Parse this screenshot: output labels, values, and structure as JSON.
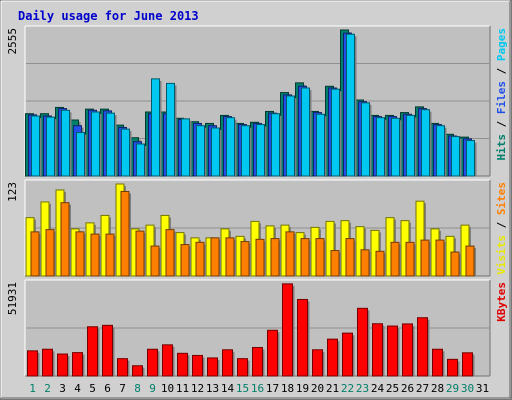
{
  "chart_data": {
    "type": "bar",
    "title": "Daily usage for June 2013",
    "categories": [
      "1",
      "2",
      "3",
      "4",
      "5",
      "6",
      "7",
      "8",
      "9",
      "10",
      "11",
      "12",
      "13",
      "14",
      "15",
      "16",
      "17",
      "18",
      "19",
      "20",
      "21",
      "22",
      "23",
      "24",
      "25",
      "26",
      "27",
      "28",
      "29",
      "30",
      "31"
    ],
    "weekend_days": [
      "1",
      "2",
      "8",
      "9",
      "15",
      "16",
      "22",
      "23",
      "29",
      "30"
    ],
    "panels": [
      {
        "id": "top",
        "ytick": "2555",
        "ymax": 2555,
        "labels": [
          {
            "text": "Pages",
            "color": "#00c8f0"
          },
          {
            "text": "Files",
            "color": "#2050e8"
          },
          {
            "text": "Hits",
            "color": "#00806a"
          }
        ],
        "series": [
          {
            "name": "Hits",
            "color": "#00806a",
            "values": [
              1090,
              1090,
              1200,
              980,
              1170,
              1170,
              890,
              670,
              1120,
              1120,
              1010,
              950,
              920,
              1060,
              920,
              940,
              1130,
              1460,
              1630,
              1130,
              1570,
              2555,
              1330,
              1060,
              1060,
              1110,
              1210,
              920,
              730,
              680,
              0
            ]
          },
          {
            "name": "Files",
            "color": "#2050e8",
            "values": [
              1070,
              1050,
              1180,
              880,
              1150,
              1140,
              850,
              600,
              1090,
              1090,
              990,
              920,
              880,
              1040,
              900,
              920,
              1100,
              1420,
              1570,
              1110,
              1540,
              2500,
              1300,
              1040,
              1040,
              1080,
              1180,
              900,
              700,
              650,
              0
            ]
          },
          {
            "name": "Pages",
            "color": "#00c8f0",
            "values": [
              1050,
              1030,
              1150,
              760,
              1120,
              1100,
              820,
              560,
              1700,
              1620,
              1000,
              880,
              840,
              1020,
              880,
              900,
              1090,
              1400,
              1540,
              1080,
              1520,
              2480,
              1280,
              1020,
              1010,
              1060,
              1160,
              880,
              690,
              620,
              0
            ]
          }
        ]
      },
      {
        "id": "middle",
        "ytick": "123",
        "ymax": 123,
        "labels": [
          {
            "text": "Sites",
            "color": "#ff8000"
          },
          {
            "text": "Visits",
            "color": "#e8e800"
          }
        ],
        "series": [
          {
            "name": "Visits",
            "color": "#ffff00",
            "values": [
              78,
              99,
              115,
              63,
              71,
              81,
              123,
              63,
              68,
              81,
              58,
              51,
              51,
              63,
              53,
              73,
              67,
              68,
              58,
              65,
              73,
              74,
              66,
              61,
              78,
              74,
              100,
              63,
              53,
              68,
              0
            ]
          },
          {
            "name": "Sites",
            "color": "#ff8000",
            "values": [
              59,
              62,
              98,
              59,
              56,
              56,
              113,
              60,
              40,
              62,
              42,
              45,
              51,
              51,
              46,
              49,
              50,
              59,
              50,
              50,
              34,
              50,
              35,
              33,
              45,
              45,
              48,
              48,
              32,
              40,
              0
            ]
          }
        ]
      },
      {
        "id": "bottom",
        "ytick": "51931",
        "ymax": 51931,
        "labels": [
          {
            "text": "KBytes",
            "color": "#e00000"
          }
        ],
        "series": [
          {
            "name": "KBytes",
            "color": "#ff0000",
            "values": [
              14200,
              15100,
              12400,
              13200,
              27800,
              28600,
              9800,
              5800,
              15100,
              17600,
              12800,
              11600,
              10200,
              14800,
              9800,
              16100,
              25800,
              52000,
              43200,
              14800,
              20800,
              24200,
              38200,
              29500,
              28200,
              29400,
              32900,
              15100,
              9400,
              13100,
              0
            ]
          }
        ]
      }
    ]
  }
}
